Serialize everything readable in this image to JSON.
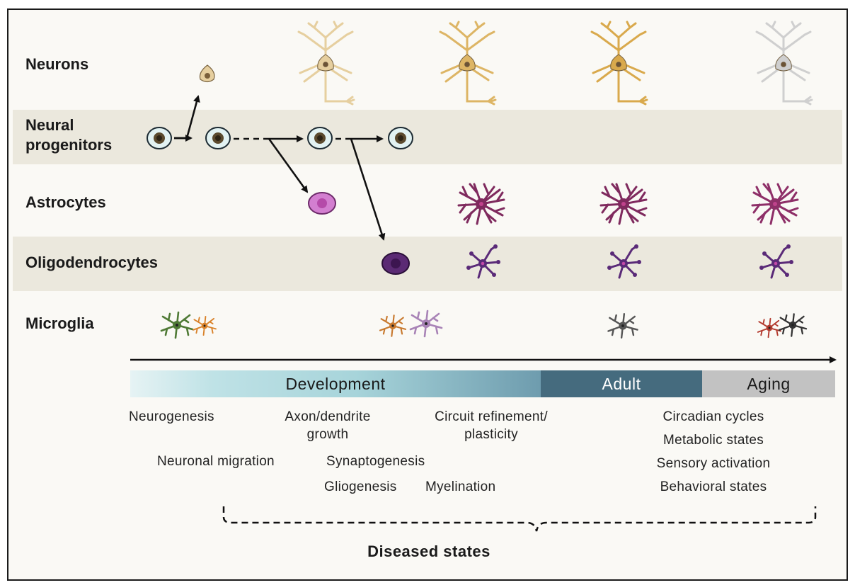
{
  "rows": {
    "neurons": "Neurons",
    "progenitors_line1": "Neural",
    "progenitors_line2": "progenitors",
    "astrocytes": "Astrocytes",
    "oligodendrocytes": "Oligodendrocytes",
    "microglia": "Microglia"
  },
  "stages": {
    "development": "Development",
    "adult": "Adult",
    "aging": "Aging"
  },
  "processes": {
    "neurogenesis": "Neurogenesis",
    "axon_line1": "Axon/dendrite",
    "axon_line2": "growth",
    "circuit_line1": "Circuit refinement/",
    "circuit_line2": "plasticity",
    "migration": "Neuronal migration",
    "synaptogenesis": "Synaptogenesis",
    "gliogenesis": "Gliogenesis",
    "myelination": "Myelination",
    "circadian": "Circadian cycles",
    "metabolic": "Metabolic states",
    "sensory": "Sensory activation",
    "behavioral": "Behavioral states"
  },
  "disease_label": "Diseased states",
  "colors": {
    "band": "#ebe8dd",
    "neuron_dev": "#e6cf9f",
    "neuron_adult": "#d9a94c",
    "neuron_aging": "#cfcfcf",
    "astrocyte": "#7f2a5e",
    "oligodendrocyte": "#5a2a78",
    "adult_bar": "#456b7e",
    "aging_bar": "#c2c2c2"
  }
}
